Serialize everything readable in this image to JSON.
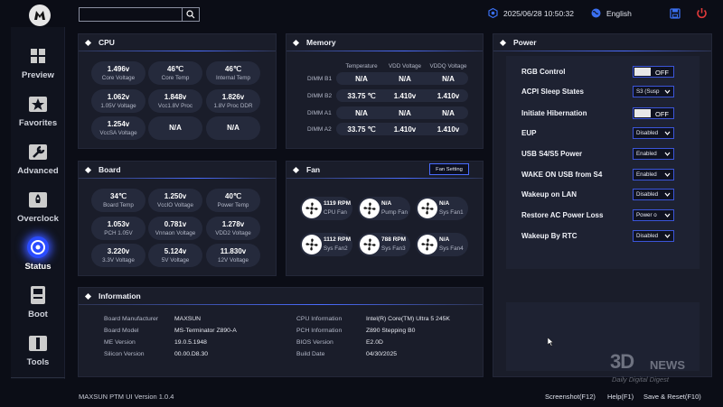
{
  "topbar": {
    "search_placeholder": "",
    "datetime": "2025/06/28 10:50:32",
    "language": "English"
  },
  "sidebar": {
    "items": [
      {
        "label": "Preview",
        "icon": "grid-icon"
      },
      {
        "label": "Favorites",
        "icon": "star-icon"
      },
      {
        "label": "Advanced",
        "icon": "wrench-icon"
      },
      {
        "label": "Overclock",
        "icon": "rocket-icon"
      },
      {
        "label": "Status",
        "icon": "gauge-icon",
        "active": true
      },
      {
        "label": "Boot",
        "icon": "drive-icon"
      },
      {
        "label": "Tools",
        "icon": "toolbox-icon"
      }
    ]
  },
  "cpu": {
    "title": "CPU",
    "tiles": [
      {
        "value": "1.496v",
        "label": "Core Voltage"
      },
      {
        "value": "46℃",
        "label": "Core Temp"
      },
      {
        "value": "46℃",
        "label": "Internal Temp"
      },
      {
        "value": "1.062v",
        "label": "1.05V Voltage"
      },
      {
        "value": "1.848v",
        "label": "Vcc1.8V Proc"
      },
      {
        "value": "1.826v",
        "label": "1.8V Proc DDR"
      },
      {
        "value": "1.254v",
        "label": "VccSA Voltage"
      },
      {
        "value": "N/A",
        "label": ""
      },
      {
        "value": "N/A",
        "label": ""
      }
    ]
  },
  "memory": {
    "title": "Memory",
    "columns": [
      "Temperature",
      "VDD Voltage",
      "VDDQ Voltage"
    ],
    "rows": [
      {
        "name": "DIMM B1",
        "cells": [
          "N/A",
          "N/A",
          "N/A"
        ]
      },
      {
        "name": "DIMM B2",
        "cells": [
          "33.75 ℃",
          "1.410v",
          "1.410v"
        ]
      },
      {
        "name": "DIMM A1",
        "cells": [
          "N/A",
          "N/A",
          "N/A"
        ]
      },
      {
        "name": "DIMM A2",
        "cells": [
          "33.75 ℃",
          "1.410v",
          "1.410v"
        ]
      }
    ]
  },
  "board": {
    "title": "Board",
    "tiles": [
      {
        "value": "34℃",
        "label": "Board Temp"
      },
      {
        "value": "1.250v",
        "label": "VccIO Voltage"
      },
      {
        "value": "40℃",
        "label": "Power Temp"
      },
      {
        "value": "1.053v",
        "label": "PCH 1.05V"
      },
      {
        "value": "0.781v",
        "label": "Vnnaon Voltage"
      },
      {
        "value": "1.278v",
        "label": "VDD2 Voltage"
      },
      {
        "value": "3.220v",
        "label": "3.3V Voltage"
      },
      {
        "value": "5.124v",
        "label": "5V Voltage"
      },
      {
        "value": "11.830v",
        "label": "12V Voltage"
      }
    ]
  },
  "fan": {
    "title": "Fan",
    "setting_button": "Fan Setting",
    "fans": [
      {
        "value": "1119 RPM",
        "label": "CPU Fan"
      },
      {
        "value": "N/A",
        "label": "Pump Fan"
      },
      {
        "value": "N/A",
        "label": "Sys Fan1"
      },
      {
        "value": "1112 RPM",
        "label": "Sys Fan2"
      },
      {
        "value": "788 RPM",
        "label": "Sys Fan3"
      },
      {
        "value": "N/A",
        "label": "Sys Fan4"
      }
    ]
  },
  "power": {
    "title": "Power",
    "rows": [
      {
        "label": "RGB Control",
        "type": "toggle",
        "value": "OFF"
      },
      {
        "label": "ACPI Sleep States",
        "type": "select",
        "value": "S3 (Susp"
      },
      {
        "label": "Initiate Hibernation",
        "type": "toggle",
        "value": "OFF"
      },
      {
        "label": "EUP",
        "type": "select",
        "value": "Disabled"
      },
      {
        "label": "USB S4/S5 Power",
        "type": "select",
        "value": "Enabled"
      },
      {
        "label": "WAKE ON USB from S4",
        "type": "select",
        "value": "Enabled"
      },
      {
        "label": "Wakeup on LAN",
        "type": "select",
        "value": "Disabled"
      },
      {
        "label": "Restore AC Power Loss",
        "type": "select",
        "value": "Power o"
      },
      {
        "label": "Wakeup By RTC",
        "type": "select",
        "value": "Disabled"
      }
    ]
  },
  "information": {
    "title": "Information",
    "left": [
      {
        "key": "Board Manufacturer",
        "value": "MAXSUN"
      },
      {
        "key": "Board Model",
        "value": "MS-Terminator Z890-A"
      },
      {
        "key": "ME Version",
        "value": "19.0.5.1948"
      },
      {
        "key": "Silicon Version",
        "value": "00.00.D8.30"
      }
    ],
    "right": [
      {
        "key": "CPU Information",
        "value": "Intel(R) Core(TM) Ultra 5 245K"
      },
      {
        "key": "PCH Information",
        "value": "Z890 Stepping B0"
      },
      {
        "key": "BIOS Version",
        "value": "E2.0D"
      },
      {
        "key": "Build Date",
        "value": "04/30/2025"
      }
    ]
  },
  "footer": {
    "version": "MAXSUN PTM UI Version 1.0.4",
    "screenshot": "Screenshot(F12)",
    "help": "Help(F1)",
    "save_reset": "Save & Reset(F10)"
  },
  "watermark": {
    "logo": "3D",
    "news": "NEWS",
    "tagline": "Daily Digital Digest"
  },
  "colors": {
    "background": "#0b0d16",
    "panel": "#1a1d2a",
    "tile": "#252a3c",
    "accent": "#3b55d9",
    "active_glow": "#2a4cff",
    "power_icon": "#e03a3a"
  }
}
